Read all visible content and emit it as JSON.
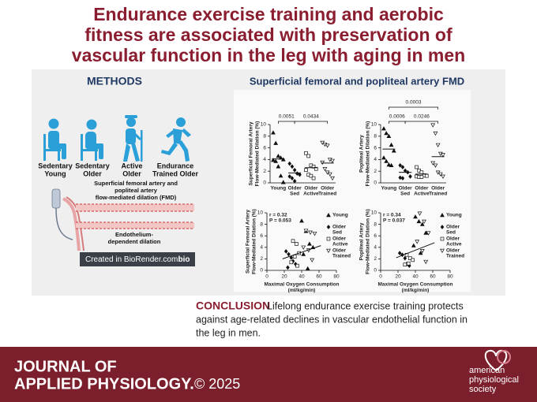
{
  "header": {
    "title": [
      "Endurance exercise training and aerobic",
      "fitness are associated with preservation of",
      "vascular function in the leg with aging in men"
    ]
  },
  "methods": {
    "title": "METHODS",
    "groups": [
      [
        "Sedentary",
        "Young"
      ],
      [
        "Sedentary",
        "Older"
      ],
      [
        "Active",
        "Older"
      ],
      [
        "Endurance",
        "Trained Older"
      ]
    ],
    "measure": [
      "Superficial femoral artery and",
      "popliteal artery",
      "flow-mediated dilation (FMD)"
    ],
    "mechanism": [
      "Endothelium-",
      "dependent dilation"
    ],
    "credit": "Created in BioRender.com",
    "credit_logo": "bio"
  },
  "results": {
    "title": "Superficial femoral and popliteal artery FMD",
    "groups": [
      [
        "Young"
      ],
      [
        "Older",
        "Sed"
      ],
      [
        "Older",
        "Active"
      ],
      [
        "Older",
        "Trained"
      ]
    ],
    "markers": [
      {
        "shape": "triangle",
        "filled": true
      },
      {
        "shape": "diamond",
        "filled": true
      },
      {
        "shape": "square",
        "filled": false
      },
      {
        "shape": "triangle-down",
        "filled": false
      }
    ],
    "charts": [
      {
        "type": "dot",
        "ylabel": [
          "Superficial Femoral Artery",
          "Flow-Mediated Dilation (%)"
        ],
        "ylim": [
          0,
          10
        ],
        "yticks": [
          0,
          2,
          4,
          6,
          8,
          10
        ],
        "annotations": [
          "0.0051",
          "0.0434"
        ],
        "series": [
          {
            "values": [
              8.6,
              6.8,
              4.6,
              4.3,
              4.0,
              3.9,
              3.7,
              2.8,
              1.2,
              0.1
            ],
            "mean": 4.1
          },
          {
            "values": [
              3.3,
              2.8,
              2.2,
              1.6,
              1.4,
              1.1,
              0.8,
              0.3
            ],
            "mean": 1.7
          },
          {
            "values": [
              5.1,
              4.6,
              3.0,
              2.8,
              2.4,
              2.2,
              1.4,
              1.2,
              0.8
            ],
            "mean": 2.6
          },
          {
            "values": [
              6.9,
              6.6,
              6.4,
              4.0,
              3.8,
              3.5,
              2.4,
              1.8,
              1.5,
              0.8
            ],
            "mean": 3.4
          }
        ]
      },
      {
        "type": "dot",
        "ylabel": [
          "Popliteal Artery",
          "Flow-Mediated Dilation (%)"
        ],
        "ylim": [
          0,
          10
        ],
        "yticks": [
          0,
          2,
          4,
          6,
          8,
          10
        ],
        "annotations": [
          "0.0003",
          "0.0006",
          "0.0246"
        ],
        "series": [
          {
            "values": [
              9.3,
              8.5,
              8.0,
              6.5,
              5.5,
              4.3,
              3.7,
              3.1,
              3.0
            ],
            "mean": 5.8
          },
          {
            "values": [
              3.0,
              2.7,
              2.1,
              1.8,
              1.1,
              0.9,
              0.8
            ],
            "mean": 1.8
          },
          {
            "values": [
              2.7,
              2.1,
              1.8,
              1.3,
              1.2,
              1.1,
              1.0,
              1.0
            ],
            "mean": 1.5
          },
          {
            "values": [
              9.9,
              8.5,
              6.5,
              5.0,
              4.8,
              3.4,
              3.0,
              1.8,
              1.5,
              1.1
            ],
            "mean": 4.5
          }
        ]
      },
      {
        "type": "scatter",
        "ylabel": [
          "Superficial Femoral Artery",
          "Flow-Mediated Dilation (%)"
        ],
        "xlabel": [
          "Maximal Oxygen Consumption",
          "(ml/kg/min)"
        ],
        "xlim": [
          0,
          80
        ],
        "xticks": [
          0,
          20,
          40,
          60,
          80
        ],
        "ylim": [
          0,
          10
        ],
        "yticks": [
          0,
          2,
          4,
          6,
          8,
          10
        ],
        "stats": [
          "r = 0.32",
          "P = 0.053"
        ],
        "series": [
          {
            "x": [
              40,
              45,
              49,
              53,
              42,
              47
            ],
            "y": [
              8.6,
              6.8,
              4.6,
              4.0,
              2.8,
              0.3
            ]
          },
          {
            "x": [
              22,
              25,
              28,
              30,
              33,
              24
            ],
            "y": [
              3.3,
              2.8,
              2.2,
              1.6,
              1.1,
              0.5
            ]
          },
          {
            "x": [
              30,
              34,
              37,
              32,
              28,
              35
            ],
            "y": [
              5.1,
              4.6,
              3.0,
              2.4,
              1.4,
              0.8
            ]
          },
          {
            "x": [
              45,
              50,
              55,
              42,
              48,
              52
            ],
            "y": [
              6.9,
              6.6,
              6.4,
              4.0,
              3.5,
              1.8
            ]
          }
        ],
        "fit": {
          "x": [
            18,
            62
          ],
          "y": [
            2.0,
            4.3
          ]
        }
      },
      {
        "type": "scatter",
        "ylabel": [
          "Popliteal Artery",
          "Flow-Mediated Dilation (%)"
        ],
        "xlabel": [
          "Maximal Oxygen Consumption",
          "(ml/kg/min)"
        ],
        "xlim": [
          0,
          80
        ],
        "xticks": [
          0,
          20,
          40,
          60,
          80
        ],
        "ylim": [
          0,
          10
        ],
        "yticks": [
          0,
          2,
          4,
          6,
          8,
          10
        ],
        "stats": [
          "r = 0.34",
          "P = 0.037"
        ],
        "series": [
          {
            "x": [
              40,
              44,
              48,
              52,
              38,
              46
            ],
            "y": [
              9.3,
              8.5,
              8.0,
              6.5,
              4.3,
              3.0
            ]
          },
          {
            "x": [
              22,
              25,
              28,
              30,
              33
            ],
            "y": [
              3.0,
              2.7,
              2.1,
              1.1,
              0.8
            ]
          },
          {
            "x": [
              30,
              34,
              37,
              32,
              28
            ],
            "y": [
              2.7,
              2.1,
              1.8,
              1.2,
              1.0
            ]
          },
          {
            "x": [
              45,
              50,
              55,
              42,
              48,
              52
            ],
            "y": [
              9.9,
              8.5,
              6.5,
              5.0,
              3.4,
              1.5
            ]
          }
        ],
        "fit": {
          "x": [
            18,
            62
          ],
          "y": [
            2.2,
            4.8
          ]
        }
      }
    ]
  },
  "conclusion": {
    "label": "CONCLUSION",
    "lines": [
      "Lifelong endurance exercise training protects",
      "against age-related declines in vascular endothelial function in",
      "the leg in men."
    ]
  },
  "footer": {
    "journal": [
      "JOURNAL OF",
      "APPLIED PHYSIOLOGY."
    ],
    "copyright": "© 2025",
    "society": [
      "american",
      "physiological",
      "society"
    ]
  }
}
